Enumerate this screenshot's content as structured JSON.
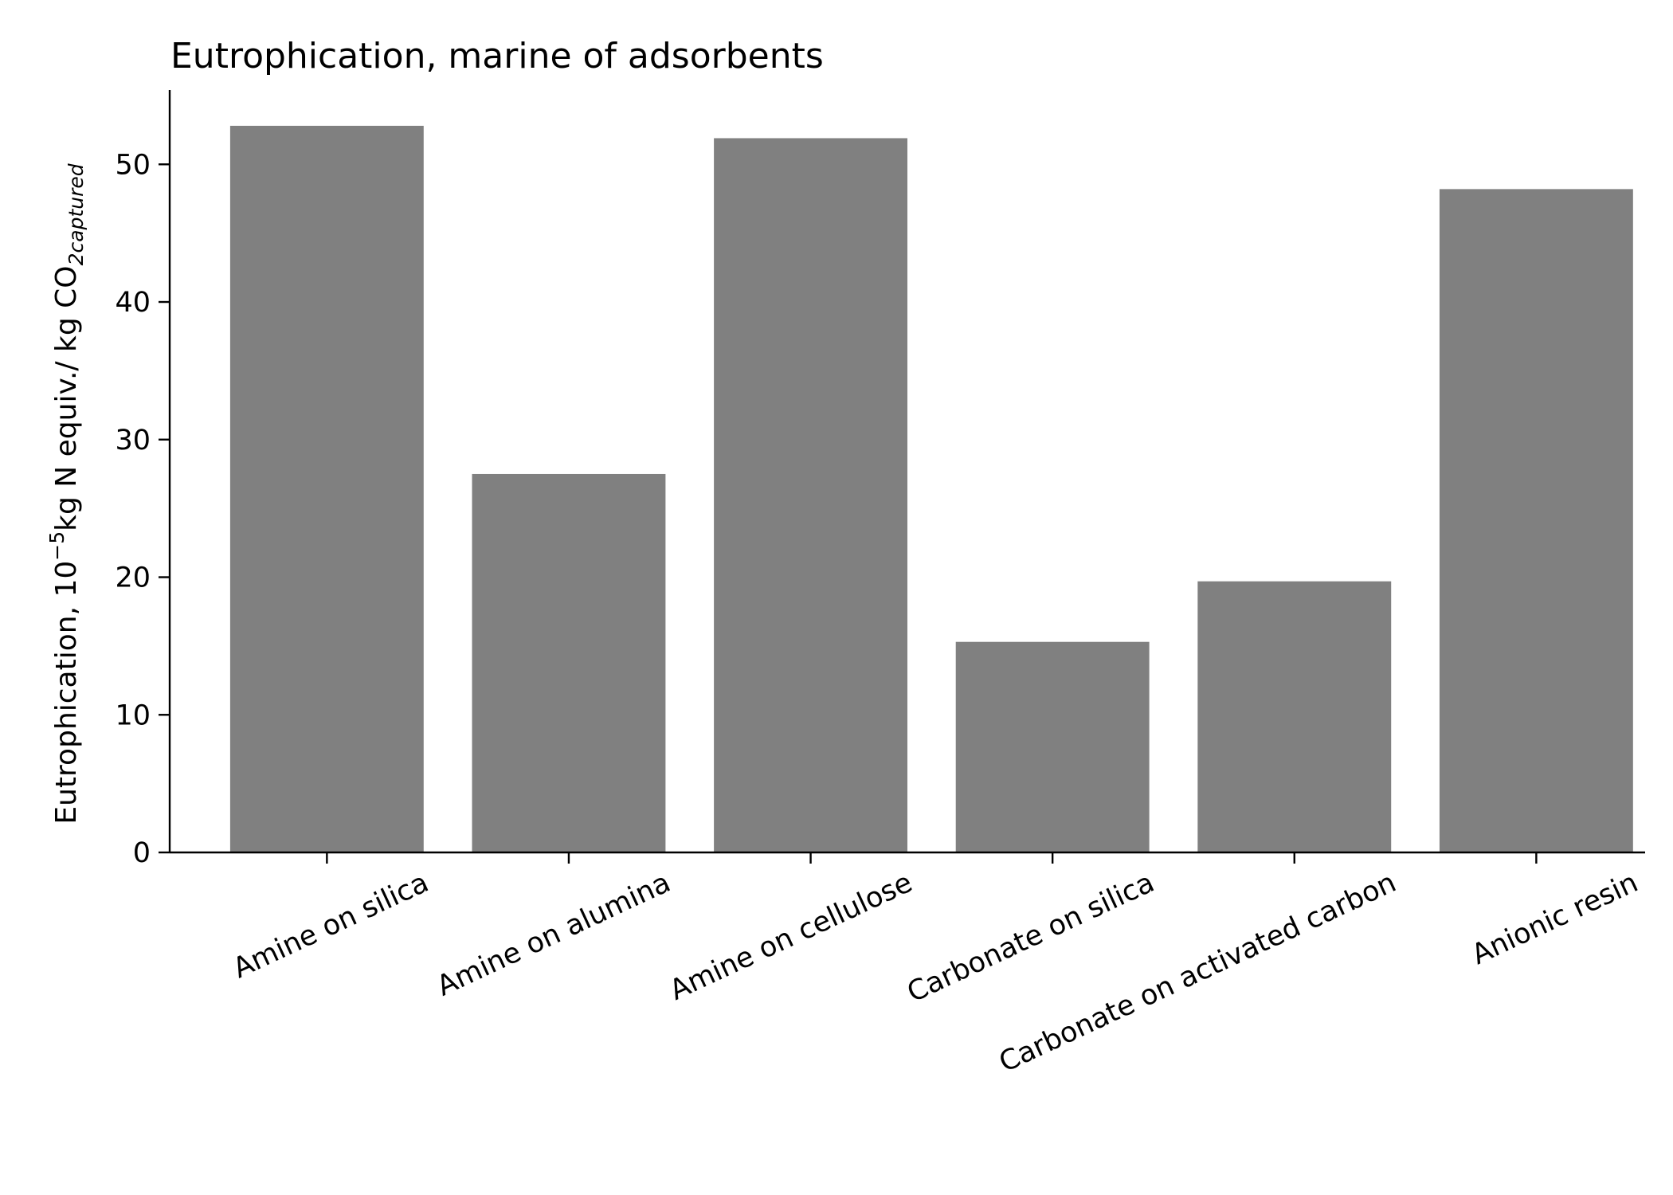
{
  "chart_data": {
    "type": "bar",
    "title": "Eutrophication, marine of adsorbents",
    "ylabel": {
      "prefix": "Eutrophication, 10",
      "exponent": "−5",
      "middle": "kg N equiv./ kg CO",
      "subscript": "2captured"
    },
    "xlabel": "",
    "categories": [
      "Amine on silica",
      "Amine on alumina",
      "Amine on cellulose",
      "Carbonate on silica",
      "Carbonate on activated carbon",
      "Anionic resin"
    ],
    "values": [
      52.8,
      27.5,
      51.9,
      15.3,
      19.7,
      48.2
    ],
    "ylim": [
      0,
      55.4
    ],
    "yticks": [
      0,
      10,
      20,
      30,
      40,
      50
    ],
    "bar_color": "#808080",
    "grid": false,
    "legend": "none"
  }
}
